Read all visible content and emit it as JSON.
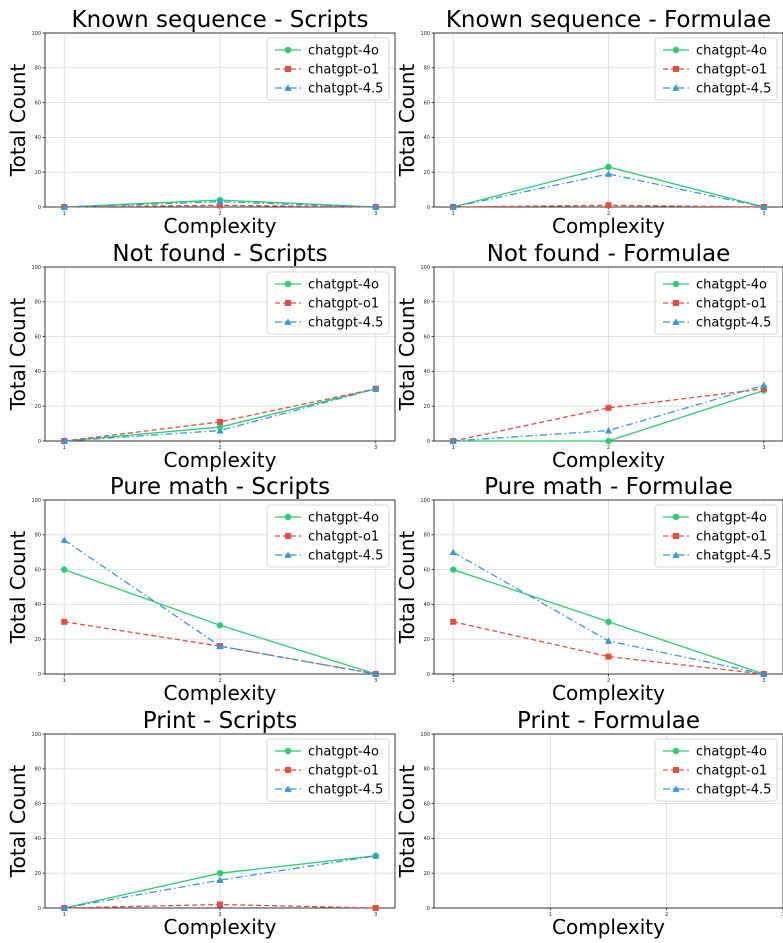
{
  "chart_data": [
    {
      "type": "line",
      "title": "Known sequence - Scripts",
      "xlabel": "Complexity",
      "ylabel": "Total Count",
      "ylim": [
        0,
        100
      ],
      "yticks": [
        "0",
        "20",
        "40",
        "60",
        "80",
        "100"
      ],
      "x": [
        1,
        2,
        3
      ],
      "xticks": [
        "1",
        "2",
        "3"
      ],
      "grid": true,
      "legend_position": "upper right",
      "series": [
        {
          "name": "chatgpt-4o",
          "color": "#2ecc71",
          "marker": "circle",
          "dash": "solid",
          "values": [
            0,
            4,
            0
          ]
        },
        {
          "name": "chatgpt-o1",
          "color": "#e74c3c",
          "marker": "square",
          "dash": "dashed",
          "values": [
            0,
            1,
            0
          ]
        },
        {
          "name": "chatgpt-4.5",
          "color": "#3498db",
          "marker": "triangle",
          "dash": "dashdot",
          "values": [
            0,
            3,
            0
          ]
        }
      ]
    },
    {
      "type": "line",
      "title": "Known sequence - Formulae",
      "xlabel": "Complexity",
      "ylabel": "Total Count",
      "ylim": [
        0,
        100
      ],
      "yticks": [
        "0",
        "20",
        "40",
        "60",
        "80",
        "100"
      ],
      "x": [
        1,
        2,
        3
      ],
      "xticks": [
        "1",
        "2",
        "3"
      ],
      "grid": true,
      "legend_position": "upper right",
      "series": [
        {
          "name": "chatgpt-4o",
          "color": "#2ecc71",
          "marker": "circle",
          "dash": "solid",
          "values": [
            0,
            23,
            0
          ]
        },
        {
          "name": "chatgpt-o1",
          "color": "#e74c3c",
          "marker": "square",
          "dash": "dashed",
          "values": [
            0,
            1,
            0
          ]
        },
        {
          "name": "chatgpt-4.5",
          "color": "#3498db",
          "marker": "triangle",
          "dash": "dashdot",
          "values": [
            0,
            19,
            0
          ]
        }
      ]
    },
    {
      "type": "line",
      "title": "Not found - Scripts",
      "xlabel": "Complexity",
      "ylabel": "Total Count",
      "ylim": [
        0,
        100
      ],
      "yticks": [
        "0",
        "20",
        "40",
        "60",
        "80",
        "100"
      ],
      "x": [
        1,
        2,
        3
      ],
      "xticks": [
        "1",
        "2",
        "3"
      ],
      "grid": true,
      "legend_position": "upper right",
      "series": [
        {
          "name": "chatgpt-4o",
          "color": "#2ecc71",
          "marker": "circle",
          "dash": "solid",
          "values": [
            0,
            8,
            30
          ]
        },
        {
          "name": "chatgpt-o1",
          "color": "#e74c3c",
          "marker": "square",
          "dash": "dashed",
          "values": [
            0,
            11,
            30
          ]
        },
        {
          "name": "chatgpt-4.5",
          "color": "#3498db",
          "marker": "triangle",
          "dash": "dashdot",
          "values": [
            0,
            6,
            30
          ]
        }
      ]
    },
    {
      "type": "line",
      "title": "Not found - Formulae",
      "xlabel": "Complexity",
      "ylabel": "Total Count",
      "ylim": [
        0,
        100
      ],
      "yticks": [
        "0",
        "20",
        "40",
        "60",
        "80",
        "100"
      ],
      "x": [
        1,
        2,
        3
      ],
      "xticks": [
        "1",
        "2",
        "3"
      ],
      "grid": true,
      "legend_position": "upper right",
      "series": [
        {
          "name": "chatgpt-4o",
          "color": "#2ecc71",
          "marker": "circle",
          "dash": "solid",
          "values": [
            0,
            0,
            29
          ]
        },
        {
          "name": "chatgpt-o1",
          "color": "#e74c3c",
          "marker": "square",
          "dash": "dashed",
          "values": [
            0,
            19,
            30
          ]
        },
        {
          "name": "chatgpt-4.5",
          "color": "#3498db",
          "marker": "triangle",
          "dash": "dashdot",
          "values": [
            0,
            6,
            32
          ]
        }
      ]
    },
    {
      "type": "line",
      "title": "Pure math - Scripts",
      "xlabel": "Complexity",
      "ylabel": "Total Count",
      "ylim": [
        0,
        100
      ],
      "yticks": [
        "0",
        "20",
        "40",
        "60",
        "80",
        "100"
      ],
      "x": [
        1,
        2,
        3
      ],
      "xticks": [
        "1",
        "2",
        "3"
      ],
      "grid": true,
      "legend_position": "upper right",
      "series": [
        {
          "name": "chatgpt-4o",
          "color": "#2ecc71",
          "marker": "circle",
          "dash": "solid",
          "values": [
            60,
            28,
            0
          ]
        },
        {
          "name": "chatgpt-o1",
          "color": "#e74c3c",
          "marker": "square",
          "dash": "dashed",
          "values": [
            30,
            16,
            0
          ]
        },
        {
          "name": "chatgpt-4.5",
          "color": "#3498db",
          "marker": "triangle",
          "dash": "dashdot",
          "values": [
            77,
            16,
            0
          ]
        }
      ]
    },
    {
      "type": "line",
      "title": "Pure math - Formulae",
      "xlabel": "Complexity",
      "ylabel": "Total Count",
      "ylim": [
        0,
        100
      ],
      "yticks": [
        "0",
        "20",
        "40",
        "60",
        "80",
        "100"
      ],
      "x": [
        1,
        2,
        3
      ],
      "xticks": [
        "1",
        "2",
        "3"
      ],
      "grid": true,
      "legend_position": "upper right",
      "series": [
        {
          "name": "chatgpt-4o",
          "color": "#2ecc71",
          "marker": "circle",
          "dash": "solid",
          "values": [
            60,
            30,
            0
          ]
        },
        {
          "name": "chatgpt-o1",
          "color": "#e74c3c",
          "marker": "square",
          "dash": "dashed",
          "values": [
            30,
            10,
            0
          ]
        },
        {
          "name": "chatgpt-4.5",
          "color": "#3498db",
          "marker": "triangle",
          "dash": "dashdot",
          "values": [
            70,
            19,
            0
          ]
        }
      ]
    },
    {
      "type": "line",
      "title": "Print - Scripts",
      "xlabel": "Complexity",
      "ylabel": "Total Count",
      "ylim": [
        0,
        100
      ],
      "yticks": [
        "0",
        "20",
        "40",
        "60",
        "80",
        "100"
      ],
      "x": [
        1,
        2,
        3
      ],
      "xticks": [
        "1",
        "2",
        "3"
      ],
      "grid": true,
      "legend_position": "upper right",
      "series": [
        {
          "name": "chatgpt-4o",
          "color": "#2ecc71",
          "marker": "circle",
          "dash": "solid",
          "values": [
            0,
            20,
            30
          ]
        },
        {
          "name": "chatgpt-o1",
          "color": "#e74c3c",
          "marker": "square",
          "dash": "dashed",
          "values": [
            0,
            2,
            0
          ]
        },
        {
          "name": "chatgpt-4.5",
          "color": "#3498db",
          "marker": "triangle",
          "dash": "dashdot",
          "values": [
            0,
            16,
            30
          ]
        }
      ]
    },
    {
      "type": "line",
      "title": "Print - Formulae",
      "xlabel": "Complexity",
      "ylabel": "Total Count",
      "ylim": [
        0,
        100
      ],
      "yticks": [
        "0",
        "20",
        "40",
        "60",
        "80",
        "100"
      ],
      "xlim": [
        0,
        3
      ],
      "x": [],
      "xticks": [
        "1",
        "2",
        "3"
      ],
      "grid": true,
      "legend_position": "upper right",
      "series": [
        {
          "name": "chatgpt-4o",
          "color": "#2ecc71",
          "marker": "circle",
          "dash": "solid",
          "values": []
        },
        {
          "name": "chatgpt-o1",
          "color": "#e74c3c",
          "marker": "square",
          "dash": "dashed",
          "values": []
        },
        {
          "name": "chatgpt-4.5",
          "color": "#3498db",
          "marker": "triangle",
          "dash": "dashdot",
          "values": []
        }
      ]
    }
  ]
}
